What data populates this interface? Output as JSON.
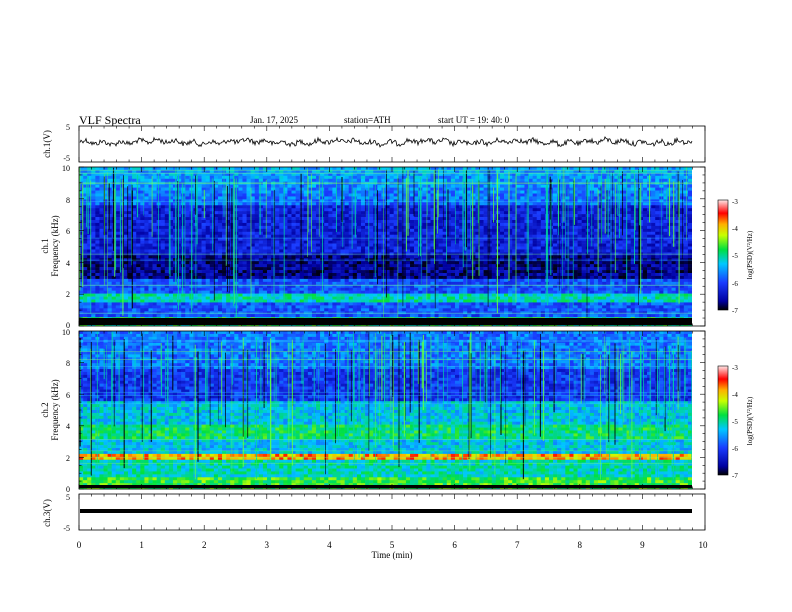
{
  "header": {
    "title": "VLF  Spectra",
    "date": "Jan. 17, 2025",
    "station": "station=ATH",
    "start": "start  UT  =   19: 40: 0"
  },
  "chart_data": [
    {
      "type": "line",
      "ylabel": "ch.1(V)",
      "ylim": [
        -5,
        5
      ],
      "yticks": [
        "5",
        "-5"
      ],
      "xlim": [
        0,
        10
      ],
      "description_level": "waveform oscillating around 0 V"
    },
    {
      "type": "heatmap",
      "ylabel": "ch.1\nFrequency (kHz)",
      "ylabel_lines": [
        "ch.1",
        "Frequency (kHz)"
      ],
      "ylim": [
        0,
        10
      ],
      "yticks": [
        "0",
        "2",
        "4",
        "6",
        "8",
        "10"
      ],
      "xlim": [
        0,
        10
      ],
      "colorbar": {
        "label": "log(PSD)(V²/Hz)",
        "range": [
          -7,
          -3
        ],
        "ticks": [
          "-3",
          "-4",
          "-5",
          "-6",
          "-7"
        ]
      }
    },
    {
      "type": "heatmap",
      "ylabel": "ch.2\nFrequency (kHz)",
      "ylabel_lines": [
        "ch.2",
        "Frequency (kHz)"
      ],
      "ylim": [
        0,
        10
      ],
      "yticks": [
        "0",
        "2",
        "4",
        "6",
        "8",
        "10"
      ],
      "xlim": [
        0,
        10
      ],
      "colorbar": {
        "label": "log(PSD)(V²/Hz)",
        "range": [
          -7,
          -3
        ],
        "ticks": [
          "-3",
          "-4",
          "-5",
          "-6",
          "-7"
        ]
      }
    },
    {
      "type": "line",
      "ylabel": "ch.3(V)",
      "ylim": [
        -5,
        5
      ],
      "yticks": [
        "5",
        "-5"
      ],
      "xlim": [
        0,
        10
      ],
      "xlabel": "Time  (min)",
      "xticks": [
        "0",
        "1",
        "2",
        "3",
        "4",
        "5",
        "6",
        "7",
        "8",
        "9",
        "10"
      ],
      "description_level": "thick flat trace near -1.5 V"
    }
  ]
}
